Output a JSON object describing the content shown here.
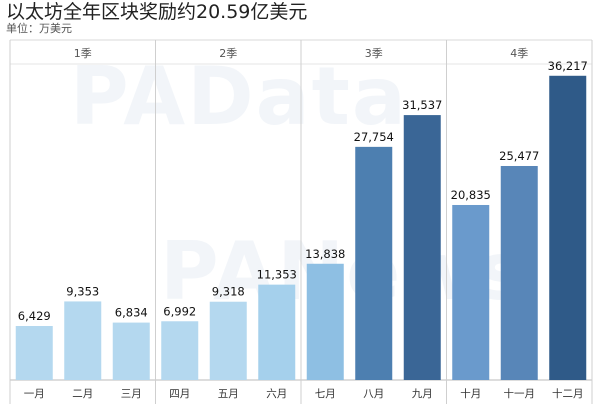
{
  "title": "以太坊全年区块奖励约20.59亿美元",
  "unit_label": "单位：万美元",
  "watermark_text": "PAData",
  "watermark_text_2": "PANews",
  "chart_data": {
    "type": "bar",
    "title": "以太坊全年区块奖励约20.59亿美元",
    "ylabel": "单位：万美元",
    "xlabel": "",
    "quarters": [
      "1季",
      "2季",
      "3季",
      "4季"
    ],
    "categories": [
      "一月",
      "二月",
      "三月",
      "四月",
      "五月",
      "六月",
      "七月",
      "八月",
      "九月",
      "十月",
      "十一月",
      "十二月"
    ],
    "values": [
      6429,
      9353,
      6834,
      6992,
      9318,
      11353,
      13838,
      27754,
      31537,
      20835,
      25477,
      36217
    ],
    "value_labels": [
      "6,429",
      "9,353",
      "6,834",
      "6,992",
      "9,318",
      "11,353",
      "13,838",
      "27,754",
      "31,537",
      "20,835",
      "25,477",
      "36,217"
    ],
    "ylim": [
      0,
      40000
    ],
    "grid": false,
    "legend": "none",
    "colors": [
      "#b4d8ef",
      "#b4d8ef",
      "#b4d8ef",
      "#b4d8ef",
      "#b4d8ef",
      "#a5d0ec",
      "#8ebfe3",
      "#4d7fb0",
      "#3a6696",
      "#6a9acc",
      "#5886b8",
      "#2f5a88"
    ]
  }
}
